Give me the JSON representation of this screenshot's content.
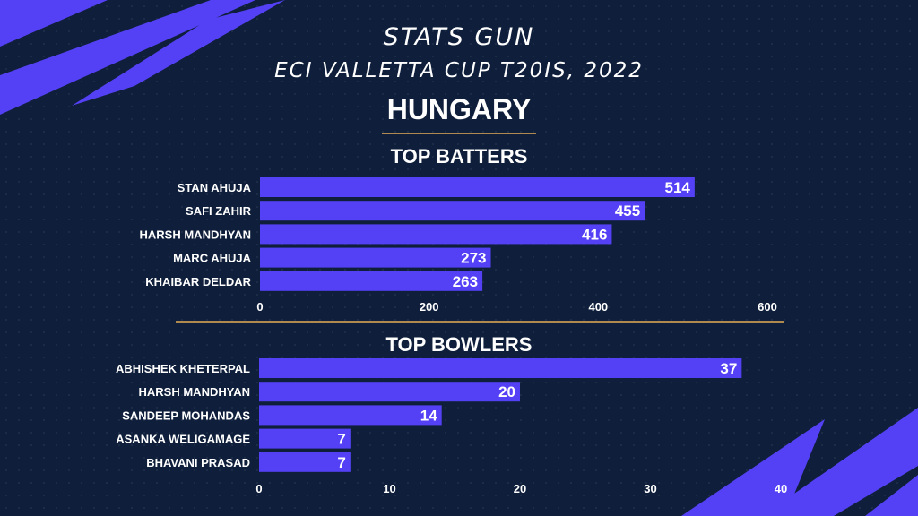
{
  "header": {
    "brand": "STATS GUN",
    "subtitle": "ECI VALLETTA CUP T20IS, 2022",
    "team": "HUNGARY"
  },
  "colors": {
    "background": "#0f1f3b",
    "bar": "#5441f5",
    "accent_line": "#b0894f"
  },
  "chart_data": [
    {
      "type": "bar",
      "orientation": "horizontal",
      "title": "TOP BATTERS",
      "categories": [
        "STAN AHUJA",
        "SAFI ZAHIR",
        "HARSH MANDHYAN",
        "MARC AHUJA",
        "KHAIBAR DELDAR"
      ],
      "values": [
        514,
        455,
        416,
        273,
        263
      ],
      "xlim": [
        0,
        600
      ],
      "xticks": [
        0,
        200,
        400,
        600
      ],
      "grid": false,
      "data_labels": true
    },
    {
      "type": "bar",
      "orientation": "horizontal",
      "title": "TOP BOWLERS",
      "categories": [
        "ABHISHEK KHETERPAL",
        "HARSH MANDHYAN",
        "SANDEEP MOHANDAS",
        "ASANKA WELIGAMAGE",
        "BHAVANI PRASAD"
      ],
      "values": [
        37,
        20,
        14,
        7,
        7
      ],
      "xlim": [
        0,
        40
      ],
      "xticks": [
        0,
        10,
        20,
        30,
        40
      ],
      "grid": false,
      "data_labels": true
    }
  ]
}
